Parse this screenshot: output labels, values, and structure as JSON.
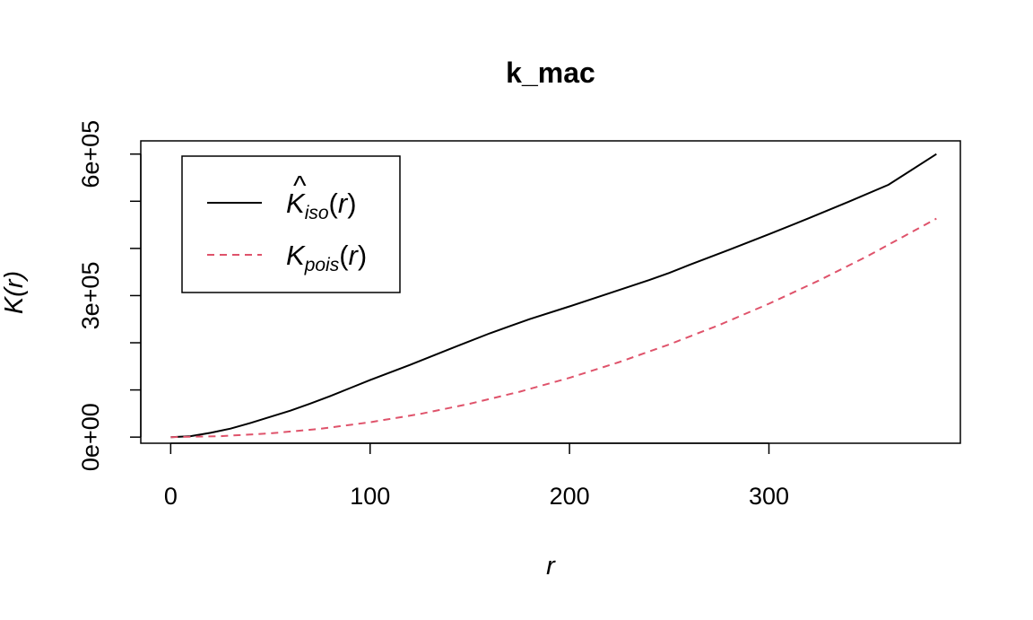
{
  "chart_data": {
    "type": "line",
    "title": "k_mac",
    "xlabel": "r",
    "ylabel": "K(r)",
    "xlim": [
      -15,
      396
    ],
    "ylim": [
      -13000,
      628000
    ],
    "x_ticks": [
      0,
      100,
      200,
      300
    ],
    "x_tick_labels": [
      "0",
      "100",
      "200",
      "300"
    ],
    "y_ticks": [
      0,
      100000,
      200000,
      300000,
      400000,
      500000,
      600000
    ],
    "y_tick_labels": [
      "0e+00",
      "",
      "",
      "3e+05",
      "",
      "",
      "6e+05"
    ],
    "grid": false,
    "legend_position": "top-left",
    "series": [
      {
        "name": "K̂iso(r)",
        "legend": {
          "symbol": "K",
          "hat": true,
          "subscript": "iso",
          "arg": "(r)"
        },
        "color": "#000000",
        "dash": "solid",
        "x": [
          0,
          10,
          20,
          30,
          40,
          50,
          60,
          70,
          80,
          90,
          100,
          120,
          140,
          160,
          170,
          180,
          200,
          220,
          240,
          250,
          260,
          280,
          300,
          320,
          340,
          360,
          384
        ],
        "y": [
          0,
          2000,
          9000,
          18000,
          30000,
          43000,
          56000,
          71000,
          87000,
          104000,
          121000,
          153000,
          187000,
          220000,
          235000,
          250000,
          277000,
          305000,
          333000,
          348000,
          365000,
          397000,
          430000,
          464000,
          499000,
          535000,
          600000
        ]
      },
      {
        "name": "Kpois(r)",
        "legend": {
          "symbol": "K",
          "hat": false,
          "subscript": "pois",
          "arg": "(r)"
        },
        "color": "#DF536B",
        "dash": "dashed",
        "x": [
          0,
          25,
          50,
          75,
          100,
          125,
          150,
          175,
          200,
          225,
          250,
          275,
          300,
          325,
          350,
          384
        ],
        "y": [
          0,
          1963,
          7854,
          17671,
          31416,
          49087,
          70686,
          96211,
          125664,
          159043,
          196350,
          237583,
          282743,
          331831,
          384845,
          463247
        ]
      }
    ]
  }
}
